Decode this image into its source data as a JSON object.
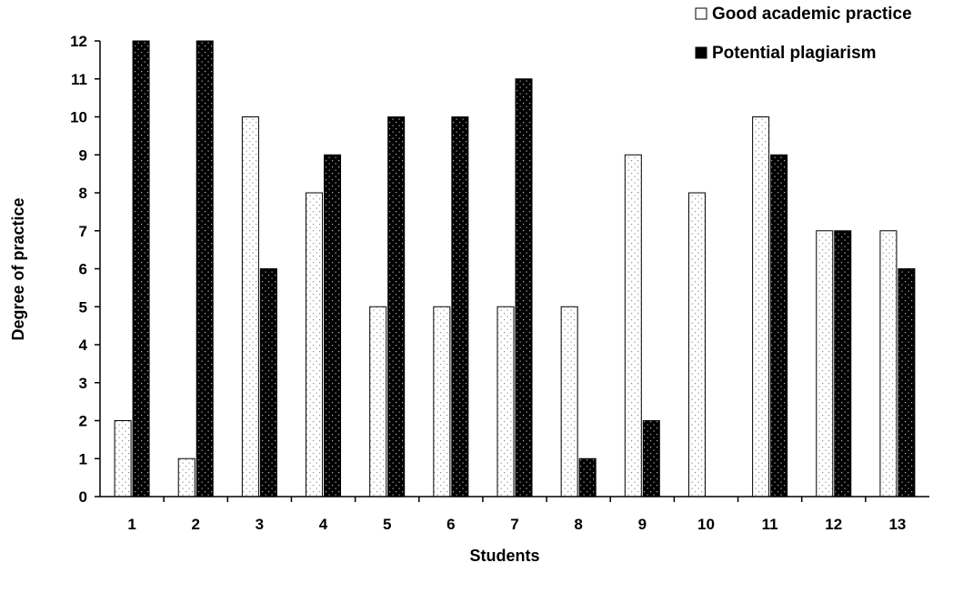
{
  "chart_data": {
    "type": "bar",
    "categories": [
      "1",
      "2",
      "3",
      "4",
      "5",
      "6",
      "7",
      "8",
      "9",
      "10",
      "11",
      "12",
      "13"
    ],
    "series": [
      {
        "name": "Good academic practice",
        "values": [
          2,
          1,
          10,
          8,
          5,
          5,
          5,
          5,
          9,
          8,
          10,
          7,
          7
        ],
        "fill": "dotted-white"
      },
      {
        "name": "Potential plagiarism",
        "values": [
          12,
          12,
          6,
          9,
          10,
          10,
          11,
          1,
          2,
          0,
          9,
          7,
          6
        ],
        "fill": "dotted-black"
      }
    ],
    "xlabel": "Students",
    "ylabel": "Degree of practice",
    "ylim": [
      0,
      12
    ],
    "yticks": [
      "0",
      "1",
      "2",
      "3",
      "4",
      "5",
      "6",
      "7",
      "8",
      "9",
      "10",
      "11",
      "12"
    ],
    "grid": false,
    "legend_position": "top-right",
    "colors": {
      "light_bar": "#ffffff",
      "dark_bar": "#000000",
      "dots_light": "#999999",
      "dots_dark": "#ffffff",
      "axis": "#000000"
    }
  }
}
